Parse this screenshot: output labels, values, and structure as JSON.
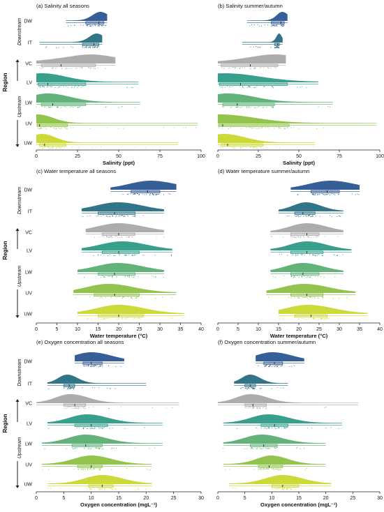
{
  "colors": {
    "DW": "#2b5692",
    "IT": "#286e82",
    "VC": "#a8a8a8",
    "LV": "#2c9a86",
    "LW": "#5aae72",
    "UV": "#8cc043",
    "UW": "#c9d72e"
  },
  "figure": {
    "region_label": "Region",
    "downstream_label": "Downstream",
    "upstream_label": "Upstream"
  },
  "chart_data": [
    {
      "type": "raincloud",
      "title": "(a) Salinity all seasons",
      "xlabel": "Salinity (ppt)",
      "xlim": [
        0,
        100
      ],
      "xticks": [
        0,
        25,
        50,
        75,
        100
      ],
      "categories": [
        "DW",
        "IT",
        "VC",
        "LV",
        "LW",
        "UV",
        "UW"
      ],
      "series": [
        {
          "category": "DW",
          "min": 18,
          "q1": 30,
          "median": 38,
          "q3": 41,
          "max": 43,
          "mode": 39,
          "spread": 3
        },
        {
          "category": "IT",
          "min": 2,
          "q1": 28,
          "median": 35,
          "q3": 38,
          "max": 40,
          "mode": 37,
          "spread": 2
        },
        {
          "category": "VC",
          "min": 0,
          "q1": 3,
          "median": 15,
          "q3": 36,
          "max": 48,
          "mode": 36,
          "spread": 6
        },
        {
          "category": "LV",
          "min": 0,
          "q1": 1,
          "median": 7,
          "q3": 30,
          "max": 62,
          "mode": 2,
          "spread": 4
        },
        {
          "category": "LW",
          "min": 0,
          "q1": 3,
          "median": 10,
          "q3": 30,
          "max": 63,
          "mode": 6,
          "spread": 6
        },
        {
          "category": "UV",
          "min": 0,
          "q1": 0.5,
          "median": 2,
          "q3": 19,
          "max": 98,
          "mode": 0.5,
          "spread": 2
        },
        {
          "category": "UW",
          "min": 0,
          "q1": 2,
          "median": 5,
          "q3": 18,
          "max": 86,
          "mode": 3,
          "spread": 4
        }
      ]
    },
    {
      "type": "raincloud",
      "title": "(b) Salinity summer/autumn",
      "xlabel": "Salinity (ppt)",
      "xlim": [
        0,
        100
      ],
      "xticks": [
        0,
        25,
        50,
        75,
        100
      ],
      "categories": [
        "DW",
        "IT",
        "VC",
        "LV",
        "LW",
        "UV",
        "UW"
      ],
      "series": [
        {
          "category": "DW",
          "min": 18,
          "q1": 33,
          "median": 39,
          "q3": 41,
          "max": 43,
          "mode": 40,
          "spread": 3
        },
        {
          "category": "IT",
          "min": 15,
          "q1": 35,
          "median": 37,
          "q3": 38,
          "max": 40,
          "mode": 38,
          "spread": 1.5
        },
        {
          "category": "VC",
          "min": 0,
          "q1": 2,
          "median": 20,
          "q3": 37,
          "max": 42,
          "mode": 38,
          "spread": 4
        },
        {
          "category": "LV",
          "min": 0,
          "q1": 1,
          "median": 14,
          "q3": 43,
          "max": 62,
          "mode": 1,
          "spread": 3
        },
        {
          "category": "LW",
          "min": 0,
          "q1": 3,
          "median": 12,
          "q3": 35,
          "max": 71,
          "mode": 4,
          "spread": 4
        },
        {
          "category": "UV",
          "min": 0,
          "q1": 0.5,
          "median": 3,
          "q3": 44,
          "max": 98,
          "mode": 0.5,
          "spread": 2
        },
        {
          "category": "UW",
          "min": 0,
          "q1": 2,
          "median": 6,
          "q3": 28,
          "max": 60,
          "mode": 3,
          "spread": 4
        }
      ]
    },
    {
      "type": "raincloud",
      "title": "(c) Water temperature all seasons",
      "xlabel": "Water temperature (°C)",
      "xlim": [
        0,
        40
      ],
      "xticks": [
        0,
        5,
        10,
        15,
        20,
        25,
        30,
        35,
        40
      ],
      "categories": [
        "DW",
        "IT",
        "VC",
        "LV",
        "LW",
        "UV",
        "UW"
      ],
      "series": [
        {
          "category": "DW",
          "min": 18,
          "q1": 23,
          "median": 27,
          "q3": 30,
          "max": 34,
          "mode": 28,
          "spread": 5
        },
        {
          "category": "IT",
          "min": 11,
          "q1": 15,
          "median": 19,
          "q3": 24,
          "max": 31,
          "mode": 20,
          "spread": 5
        },
        {
          "category": "VC",
          "min": 12,
          "q1": 16,
          "median": 20,
          "q3": 24,
          "max": 31,
          "mode": 20,
          "spread": 5
        },
        {
          "category": "LV",
          "min": 11,
          "q1": 16,
          "median": 20,
          "q3": 25,
          "max": 33,
          "mode": 21,
          "spread": 5
        },
        {
          "category": "LW",
          "min": 10,
          "q1": 15,
          "median": 19,
          "q3": 24,
          "max": 31,
          "mode": 20,
          "spread": 5
        },
        {
          "category": "UV",
          "min": 9,
          "q1": 14,
          "median": 19,
          "q3": 25,
          "max": 34,
          "mode": 17,
          "spread": 5
        },
        {
          "category": "UW",
          "min": 10,
          "q1": 15,
          "median": 20,
          "q3": 26,
          "max": 36,
          "mode": 20,
          "spread": 5
        }
      ]
    },
    {
      "type": "raincloud",
      "title": "(d) Water temperature summer/autumn",
      "xlabel": "Water temperature (°C)",
      "xlim": [
        0,
        40
      ],
      "xticks": [
        0,
        5,
        10,
        15,
        20,
        25,
        30,
        35,
        40
      ],
      "categories": [
        "DW",
        "IT",
        "VC",
        "LV",
        "LW",
        "UV",
        "UW"
      ],
      "series": [
        {
          "category": "DW",
          "min": 18,
          "q1": 23,
          "median": 27,
          "q3": 30,
          "max": 35,
          "mode": 28,
          "spread": 5
        },
        {
          "category": "IT",
          "min": 15,
          "q1": 19,
          "median": 21,
          "q3": 24,
          "max": 31,
          "mode": 22,
          "spread": 3
        },
        {
          "category": "VC",
          "min": 13,
          "q1": 18,
          "median": 22,
          "q3": 25,
          "max": 31,
          "mode": 22,
          "spread": 4
        },
        {
          "category": "LV",
          "min": 13,
          "q1": 18,
          "median": 22,
          "q3": 26,
          "max": 33,
          "mode": 22,
          "spread": 4
        },
        {
          "category": "LW",
          "min": 13,
          "q1": 18,
          "median": 21,
          "q3": 25,
          "max": 31,
          "mode": 21,
          "spread": 4
        },
        {
          "category": "UV",
          "min": 12,
          "q1": 18,
          "median": 22,
          "q3": 26,
          "max": 34,
          "mode": 21,
          "spread": 5
        },
        {
          "category": "UW",
          "min": 15,
          "q1": 19,
          "median": 23,
          "q3": 27,
          "max": 37,
          "mode": 22,
          "spread": 5
        }
      ]
    },
    {
      "type": "raincloud",
      "title": "(e) Oxygen concentration all seasons",
      "xlabel": "Oxygen concentration (mgL⁻¹)",
      "xlim": [
        0,
        30
      ],
      "xticks": [
        0,
        5,
        10,
        15,
        20,
        25,
        30
      ],
      "categories": [
        "DW",
        "IT",
        "VC",
        "LV",
        "LW",
        "UV",
        "UW"
      ],
      "series": [
        {
          "category": "DW",
          "min": 7,
          "q1": 8.5,
          "median": 10,
          "q3": 12,
          "max": 16,
          "mode": 10,
          "spread": 3
        },
        {
          "category": "IT",
          "min": 2,
          "q1": 5,
          "median": 6,
          "q3": 7,
          "max": 20,
          "mode": 5.5,
          "spread": 1.5
        },
        {
          "category": "VC",
          "min": 0,
          "q1": 5,
          "median": 7,
          "q3": 9,
          "max": 26,
          "mode": 6,
          "spread": 2.5
        },
        {
          "category": "LV",
          "min": 2,
          "q1": 7,
          "median": 10,
          "q3": 13,
          "max": 23,
          "mode": 9,
          "spread": 3
        },
        {
          "category": "LW",
          "min": 1,
          "q1": 6.5,
          "median": 9,
          "q3": 12,
          "max": 23,
          "mode": 9,
          "spread": 3
        },
        {
          "category": "UV",
          "min": 1,
          "q1": 7.5,
          "median": 10,
          "q3": 12,
          "max": 21,
          "mode": 10,
          "spread": 3
        },
        {
          "category": "UW",
          "min": 2,
          "q1": 9.5,
          "median": 12,
          "q3": 14,
          "max": 21,
          "mode": 12,
          "spread": 3
        }
      ]
    },
    {
      "type": "raincloud",
      "title": "(f) Oxygen concentration summer/autumn",
      "xlabel": "Oxygen concentration (mgL⁻¹)",
      "xlim": [
        0,
        30
      ],
      "xticks": [
        0,
        5,
        10,
        15,
        20,
        25,
        30
      ],
      "categories": [
        "DW",
        "IT",
        "VC",
        "LV",
        "LW",
        "UV",
        "UW"
      ],
      "series": [
        {
          "category": "DW",
          "min": 7,
          "q1": 8.5,
          "median": 10.5,
          "q3": 12,
          "max": 16,
          "mode": 10,
          "spread": 3
        },
        {
          "category": "IT",
          "min": 3,
          "q1": 5,
          "median": 6,
          "q3": 7,
          "max": 13,
          "mode": 6,
          "spread": 1.5
        },
        {
          "category": "VC",
          "min": 0,
          "q1": 5,
          "median": 6.5,
          "q3": 9,
          "max": 26,
          "mode": 6,
          "spread": 2.5
        },
        {
          "category": "LV",
          "min": 1,
          "q1": 8,
          "median": 10.5,
          "q3": 13,
          "max": 23,
          "mode": 9,
          "spread": 3
        },
        {
          "category": "LW",
          "min": 1,
          "q1": 6,
          "median": 8.5,
          "q3": 11,
          "max": 20,
          "mode": 8,
          "spread": 3
        },
        {
          "category": "UV",
          "min": 1,
          "q1": 7.5,
          "median": 9.5,
          "q3": 12,
          "max": 20,
          "mode": 10,
          "spread": 2.5
        },
        {
          "category": "UW",
          "min": 2,
          "q1": 10,
          "median": 12,
          "q3": 15,
          "max": 21,
          "mode": 12,
          "spread": 3
        }
      ]
    }
  ]
}
